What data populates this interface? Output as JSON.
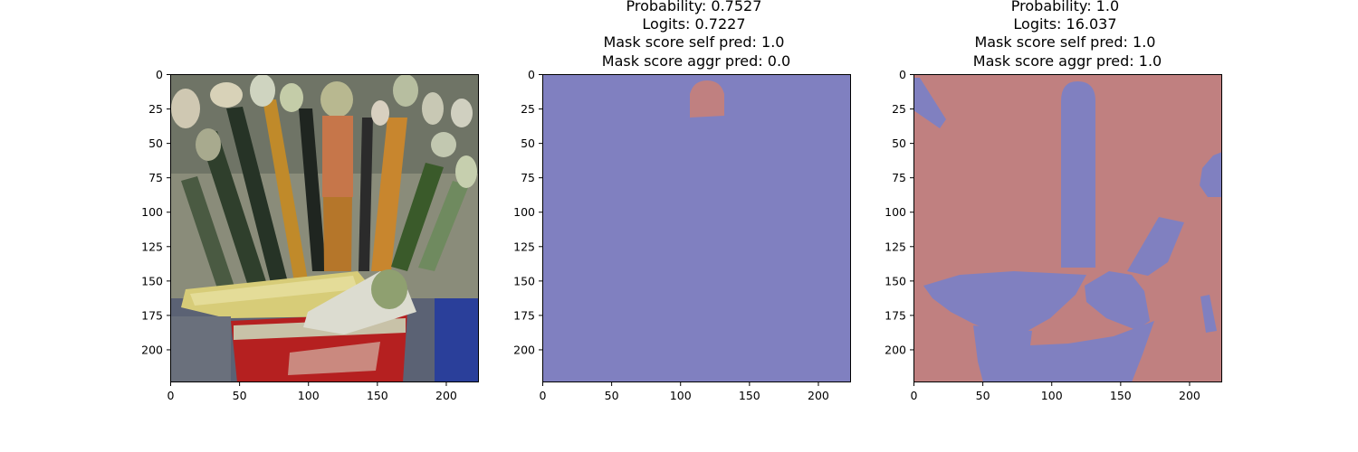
{
  "chart_data": [
    {
      "type": "image",
      "panel": "original-image",
      "image_content": "paintbrushes in a red tin",
      "title": [],
      "xlim": [
        0,
        224
      ],
      "ylim": [
        224,
        0
      ],
      "x_ticks": [
        0,
        50,
        100,
        150,
        200
      ],
      "y_ticks": [
        0,
        25,
        50,
        75,
        100,
        125,
        150,
        175,
        200
      ]
    },
    {
      "type": "heatmap",
      "panel": "mask-1",
      "title": [
        "Probability: 0.7527",
        "Logits: 0.7227",
        "Mask score self pred: 1.0",
        "Mask score aggr pred: 0.0"
      ],
      "xlim": [
        0,
        224
      ],
      "ylim": [
        224,
        0
      ],
      "x_ticks": [
        0,
        50,
        100,
        150,
        200
      ],
      "y_ticks": [
        0,
        25,
        50,
        75,
        100,
        125,
        150,
        175,
        200
      ],
      "colors": {
        "background": "#8080c0",
        "mask": "#c08080"
      }
    },
    {
      "type": "heatmap",
      "panel": "mask-2",
      "title": [
        "Probability: 1.0",
        "Logits: 16.037",
        "Mask score self pred: 1.0",
        "Mask score aggr pred: 1.0"
      ],
      "xlim": [
        0,
        224
      ],
      "ylim": [
        224,
        0
      ],
      "x_ticks": [
        0,
        50,
        100,
        150,
        200
      ],
      "y_ticks": [
        0,
        25,
        50,
        75,
        100,
        125,
        150,
        175,
        200
      ],
      "colors": {
        "background": "#c08080",
        "mask": "#8080c0"
      }
    }
  ]
}
